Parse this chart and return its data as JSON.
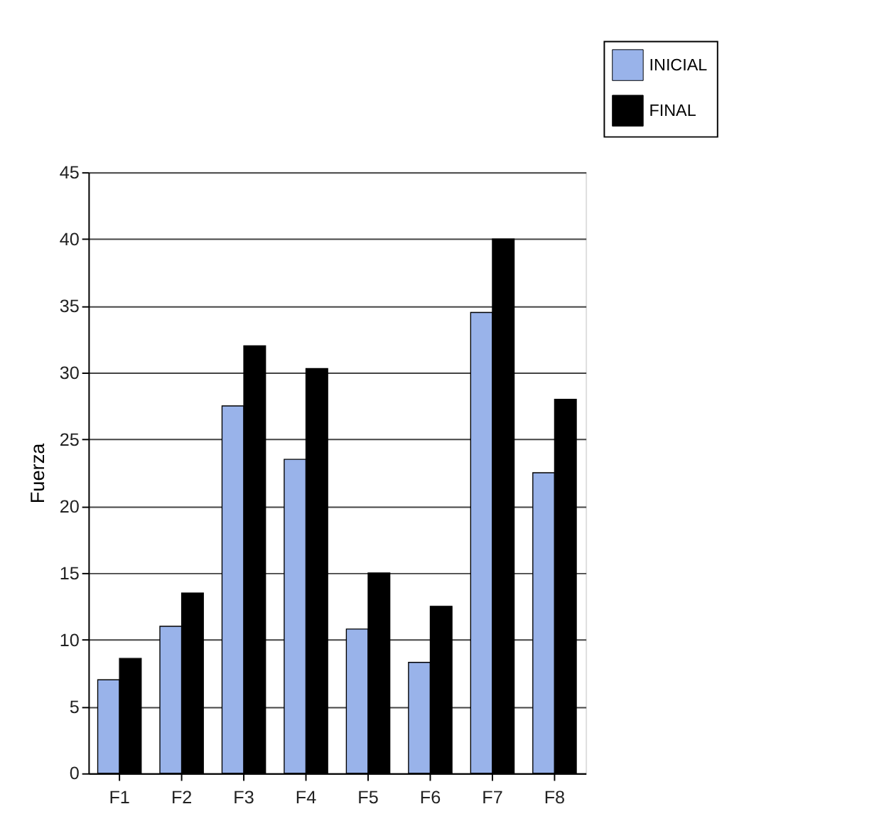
{
  "chart_data": {
    "type": "bar",
    "ylabel": "Fuerza",
    "categories": [
      "F1",
      "F2",
      "F3",
      "F4",
      "F5",
      "F6",
      "F7",
      "F8"
    ],
    "series": [
      {
        "name": "INICIAL",
        "color": "#99b3ea",
        "values": [
          7,
          11,
          27.5,
          23.5,
          10.8,
          8.3,
          34.5,
          22.5
        ]
      },
      {
        "name": "FINAL",
        "color": "#000000",
        "values": [
          8.6,
          13.5,
          32,
          30.3,
          15,
          12.5,
          40,
          28
        ]
      }
    ],
    "ylim": [
      0,
      45
    ],
    "yticks": [
      0,
      5,
      10,
      15,
      20,
      25,
      30,
      35,
      40,
      45
    ],
    "grid": "y",
    "legend": "top right"
  }
}
